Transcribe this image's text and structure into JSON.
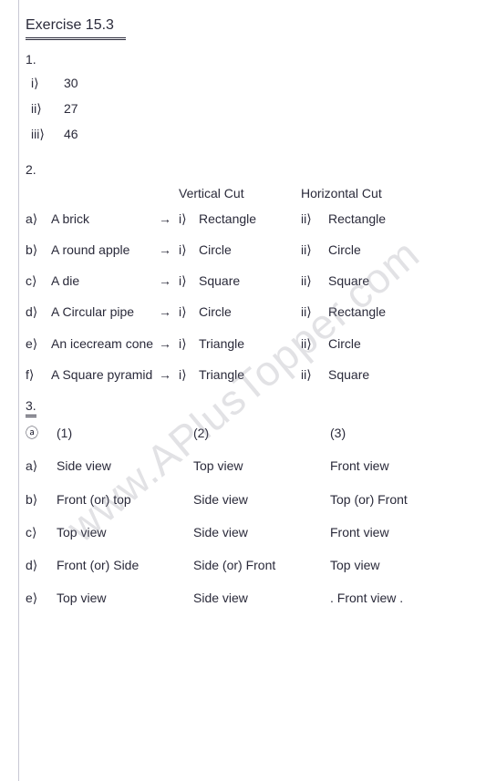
{
  "title": "Exercise 15.3",
  "watermark": "www.APlusTopper.com",
  "q1": {
    "num": "1.",
    "items": [
      {
        "label": "i⟩",
        "value": "30"
      },
      {
        "label": "ii⟩",
        "value": "27"
      },
      {
        "label": "iii⟩",
        "value": "46"
      }
    ]
  },
  "q2": {
    "num": "2.",
    "header_vertical": "Vertical Cut",
    "header_horizontal": "Horizontal Cut",
    "arrow": "→",
    "i": "i⟩",
    "ii": "ii⟩",
    "rows": [
      {
        "label": "a⟩",
        "item": "A brick",
        "v": "Rectangle",
        "h": "Rectangle"
      },
      {
        "label": "b⟩",
        "item": "A round apple",
        "v": "Circle",
        "h": "Circle"
      },
      {
        "label": "c⟩",
        "item": "A die",
        "v": "Square",
        "h": "Square"
      },
      {
        "label": "d⟩",
        "item": "A Circular pipe",
        "v": "Circle",
        "h": "Rectangle"
      },
      {
        "label": "e⟩",
        "item": "An icecream cone",
        "v": "Triangle",
        "h": "Circle"
      },
      {
        "label": "f⟩",
        "item": "A Square pyramid",
        "v": "Triangle",
        "h": "Square"
      }
    ]
  },
  "q3": {
    "num": "3.",
    "header": {
      "c1": "(1)",
      "c2": "(2)",
      "c3": "(3)"
    },
    "header_label": "ⓐ",
    "rows": [
      {
        "label": "a⟩",
        "c1": "Side view",
        "c2": "Top view",
        "c3": "Front view"
      },
      {
        "label": "b⟩",
        "c1": "Front (or) top",
        "c2": "Side view",
        "c3": "Top (or) Front"
      },
      {
        "label": "c⟩",
        "c1": "Top view",
        "c2": "Side view",
        "c3": "Front view"
      },
      {
        "label": "d⟩",
        "c1": "Front (or) Side",
        "c2": "Side (or) Front",
        "c3": "Top view"
      },
      {
        "label": "e⟩",
        "c1": "Top view",
        "c2": "Side view",
        "c3": ". Front view ."
      }
    ]
  }
}
